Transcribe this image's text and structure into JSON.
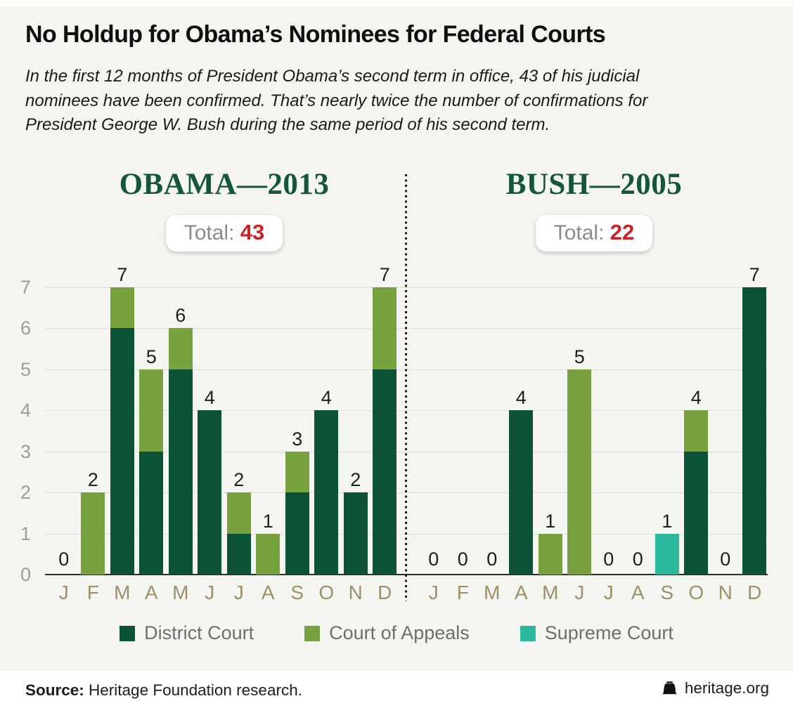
{
  "header": {
    "title": "No Holdup for Obama’s Nominees for Federal Courts",
    "subtitle": "In the first 12 months of President Obama’s second term in office, 43 of his judicial nominees have been confirmed. That’s nearly twice the number of confirmations for President George W. Bush during the same period of his second term."
  },
  "chart_data": {
    "type": "bar",
    "stacked": true,
    "categories": [
      "J",
      "F",
      "M",
      "A",
      "M",
      "J",
      "J",
      "A",
      "S",
      "O",
      "N",
      "D"
    ],
    "ylim": [
      0,
      7
    ],
    "yticks": [
      0,
      1,
      2,
      3,
      4,
      5,
      6,
      7
    ],
    "grid": true,
    "legend": [
      {
        "label": "District Court",
        "color": "#0b5334"
      },
      {
        "label": "Court of Appeals",
        "color": "#77a23f"
      },
      {
        "label": "Supreme Court",
        "color": "#2cb89c"
      }
    ],
    "panels": [
      {
        "title": "OBAMA—2013",
        "total_label": "Total:",
        "total": "43",
        "totals_by_month": [
          0,
          2,
          7,
          5,
          6,
          4,
          2,
          1,
          3,
          4,
          2,
          7
        ],
        "series": [
          {
            "name": "District Court",
            "values": [
              0,
              0,
              6,
              3,
              5,
              4,
              1,
              0,
              2,
              4,
              2,
              5
            ]
          },
          {
            "name": "Court of Appeals",
            "values": [
              0,
              2,
              1,
              2,
              1,
              0,
              1,
              1,
              1,
              0,
              0,
              2
            ]
          },
          {
            "name": "Supreme Court",
            "values": [
              0,
              0,
              0,
              0,
              0,
              0,
              0,
              0,
              0,
              0,
              0,
              0
            ]
          }
        ]
      },
      {
        "title": "BUSH—2005",
        "total_label": "Total:",
        "total": "22",
        "totals_by_month": [
          0,
          0,
          0,
          4,
          1,
          5,
          0,
          0,
          1,
          4,
          0,
          7
        ],
        "series": [
          {
            "name": "District Court",
            "values": [
              0,
              0,
              0,
              4,
              0,
              0,
              0,
              0,
              0,
              3,
              0,
              7
            ]
          },
          {
            "name": "Court of Appeals",
            "values": [
              0,
              0,
              0,
              0,
              1,
              5,
              0,
              0,
              0,
              1,
              0,
              0
            ]
          },
          {
            "name": "Supreme Court",
            "values": [
              0,
              0,
              0,
              0,
              0,
              0,
              0,
              0,
              1,
              0,
              0,
              0
            ]
          }
        ]
      }
    ]
  },
  "colors": {
    "background": "#f4f4f1",
    "panel_header_green": "#14563a",
    "total_red": "#cb2127",
    "axis_tick_gray": "#9c9c9c",
    "month_label_tan": "#9e9066",
    "gridline": "#dedede",
    "baseline": "#2b2b2b"
  },
  "footer": {
    "source_label": "Source:",
    "source_text": " Heritage Foundation research.",
    "site": "heritage.org",
    "logo": "liberty-bell-icon"
  }
}
